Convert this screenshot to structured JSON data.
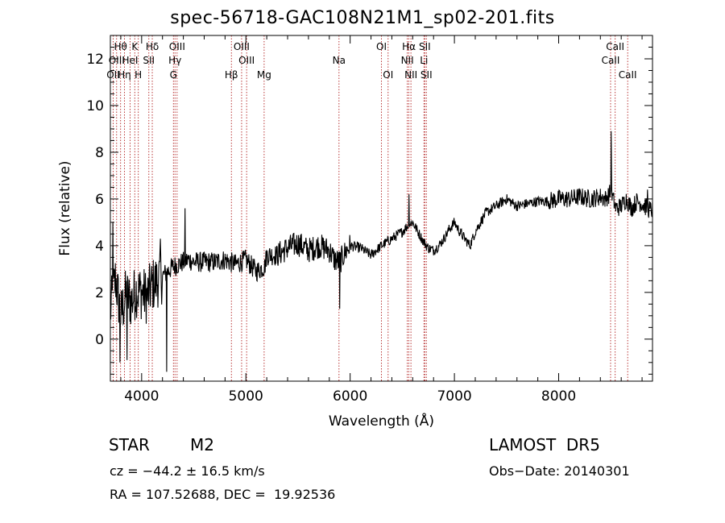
{
  "chart_data": {
    "type": "line",
    "title": "spec-56718-GAC108N21M1_sp02-201.fits",
    "xlabel": "Wavelength (Å)",
    "ylabel": "Flux (relative)",
    "xlim": [
      3700,
      8900
    ],
    "ylim": [
      -1.8,
      13
    ],
    "xticks": [
      4000,
      5000,
      6000,
      7000,
      8000
    ],
    "xtick_labels": [
      "4000",
      "5000",
      "6000",
      "7000",
      "8000"
    ],
    "yticks": [
      0,
      2,
      4,
      6,
      8,
      10,
      12
    ],
    "ytick_labels": [
      "0",
      "2",
      "4",
      "6",
      "8",
      "10",
      "12"
    ],
    "grid": false,
    "line_color": "#000000",
    "marker_color": "#b22222",
    "series": [
      {
        "anchors": [
          [
            3700,
            1.2
          ],
          [
            3750,
            2.6
          ],
          [
            3800,
            1.0
          ],
          [
            3850,
            1.9
          ],
          [
            3900,
            1.6
          ],
          [
            3950,
            2.1
          ],
          [
            4000,
            2.0
          ],
          [
            4050,
            1.8
          ],
          [
            4100,
            2.3
          ],
          [
            4150,
            2.5
          ],
          [
            4200,
            2.7
          ],
          [
            4250,
            2.9
          ],
          [
            4300,
            3.1
          ],
          [
            4350,
            3.2
          ],
          [
            4400,
            3.3
          ],
          [
            4450,
            3.4
          ],
          [
            4500,
            3.3
          ],
          [
            4600,
            3.3
          ],
          [
            4700,
            3.3
          ],
          [
            4800,
            3.4
          ],
          [
            4900,
            3.2
          ],
          [
            5000,
            3.4
          ],
          [
            5100,
            2.9
          ],
          [
            5180,
            3.1
          ],
          [
            5200,
            3.6
          ],
          [
            5300,
            3.6
          ],
          [
            5400,
            3.9
          ],
          [
            5500,
            4.1
          ],
          [
            5600,
            3.8
          ],
          [
            5700,
            4.0
          ],
          [
            5800,
            3.8
          ],
          [
            5850,
            3.4
          ],
          [
            5900,
            3.3
          ],
          [
            5950,
            3.7
          ],
          [
            6000,
            4.0
          ],
          [
            6100,
            3.9
          ],
          [
            6200,
            3.6
          ],
          [
            6300,
            4.0
          ],
          [
            6400,
            4.3
          ],
          [
            6500,
            4.6
          ],
          [
            6560,
            4.9
          ],
          [
            6600,
            5.0
          ],
          [
            6650,
            4.6
          ],
          [
            6700,
            4.2
          ],
          [
            6750,
            3.9
          ],
          [
            6800,
            3.8
          ],
          [
            6850,
            4.0
          ],
          [
            6900,
            4.3
          ],
          [
            6950,
            4.7
          ],
          [
            7000,
            5.0
          ],
          [
            7050,
            4.6
          ],
          [
            7100,
            4.3
          ],
          [
            7150,
            4.0
          ],
          [
            7200,
            4.6
          ],
          [
            7300,
            5.4
          ],
          [
            7400,
            5.7
          ],
          [
            7500,
            6.0
          ],
          [
            7600,
            5.7
          ],
          [
            7700,
            5.8
          ],
          [
            7800,
            5.9
          ],
          [
            7900,
            5.9
          ],
          [
            8000,
            6.0
          ],
          [
            8100,
            6.0
          ],
          [
            8200,
            6.1
          ],
          [
            8300,
            6.0
          ],
          [
            8400,
            6.1
          ],
          [
            8450,
            6.0
          ],
          [
            8500,
            6.3
          ],
          [
            8550,
            5.6
          ],
          [
            8600,
            5.7
          ],
          [
            8650,
            6.0
          ],
          [
            8700,
            5.6
          ],
          [
            8750,
            5.9
          ],
          [
            8800,
            5.8
          ],
          [
            8850,
            5.6
          ],
          [
            8900,
            5.5
          ]
        ],
        "spikes": [
          [
            4240,
            -1.4
          ],
          [
            4180,
            4.3
          ],
          [
            4415,
            5.6
          ],
          [
            5900,
            1.3
          ],
          [
            6563,
            6.2
          ],
          [
            8505,
            8.9
          ],
          [
            8850,
            6.4
          ],
          [
            3725,
            5.0
          ],
          [
            3790,
            -1.0
          ],
          [
            3860,
            -0.9
          ]
        ]
      }
    ],
    "lines": [
      {
        "label": "OII",
        "x": 3727,
        "row": 2
      },
      {
        "label": "Hθ",
        "x": 3798,
        "row": 0
      },
      {
        "label": "OIII",
        "x": 3760,
        "row": 1
      },
      {
        "label": "Hη",
        "x": 3835,
        "row": 2
      },
      {
        "label": "HeI",
        "x": 3889,
        "row": 1
      },
      {
        "label": "K",
        "x": 3934,
        "row": 0
      },
      {
        "label": "H",
        "x": 3968,
        "row": 2
      },
      {
        "label": "SII",
        "x": 4069,
        "row": 1
      },
      {
        "label": "Hδ",
        "x": 4102,
        "row": 0
      },
      {
        "label": "OIII",
        "x": 4340,
        "row": 0
      },
      {
        "label": "Hγ",
        "x": 4320,
        "row": 1
      },
      {
        "label": "G",
        "x": 4305,
        "row": 2
      },
      {
        "label": "OIII",
        "x": 4959,
        "row": 0
      },
      {
        "label": "OIII",
        "x": 5007,
        "row": 1
      },
      {
        "label": "Hβ",
        "x": 4861,
        "row": 2
      },
      {
        "label": "Mg",
        "x": 5175,
        "row": 2
      },
      {
        "label": "Na",
        "x": 5893,
        "row": 1
      },
      {
        "label": "OI",
        "x": 6300,
        "row": 0
      },
      {
        "label": "OI",
        "x": 6364,
        "row": 2
      },
      {
        "label": "Hα",
        "x": 6563,
        "row": 0
      },
      {
        "label": "NII",
        "x": 6548,
        "row": 1
      },
      {
        "label": "NII",
        "x": 6583,
        "row": 2
      },
      {
        "label": "SII",
        "x": 6716,
        "row": 0
      },
      {
        "label": "Li",
        "x": 6708,
        "row": 1
      },
      {
        "label": "SII",
        "x": 6731,
        "row": 2
      },
      {
        "label": "CaII",
        "x": 8542,
        "row": 0
      },
      {
        "label": "CaII",
        "x": 8498,
        "row": 1
      },
      {
        "label": "CaII",
        "x": 8662,
        "row": 2
      }
    ]
  },
  "info": {
    "obj_class": "STAR",
    "subclass": "M2",
    "survey": "LAMOST  DR5",
    "cz": "cz = −44.2 ± 16.5 km/s",
    "obs_date": "Obs−Date: 20140301",
    "radec": "RA = 107.52688, DEC =  19.92536"
  }
}
